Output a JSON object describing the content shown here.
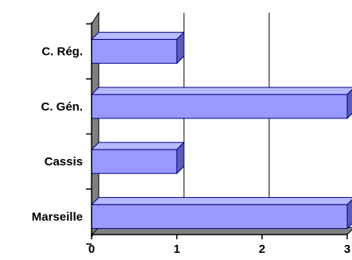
{
  "chart_data": {
    "type": "bar",
    "orientation": "horizontal",
    "style": "3d",
    "categories": [
      "C. Rég.",
      "C. Gén.",
      "Cassis",
      "Marseille"
    ],
    "values": [
      1,
      3,
      1,
      3
    ],
    "x_ticks": [
      "0",
      "1",
      "2",
      "3"
    ],
    "xlim": [
      0,
      3
    ],
    "title": "",
    "xlabel": "",
    "ylabel": "",
    "grid": true,
    "legend": "none",
    "colors": {
      "bar_front": "#9999FF",
      "bar_top": "#B8B8FF",
      "bar_side": "#5C5CB8",
      "bar_edge": "#000080",
      "wall": "#808080",
      "grid": "#000000"
    }
  }
}
